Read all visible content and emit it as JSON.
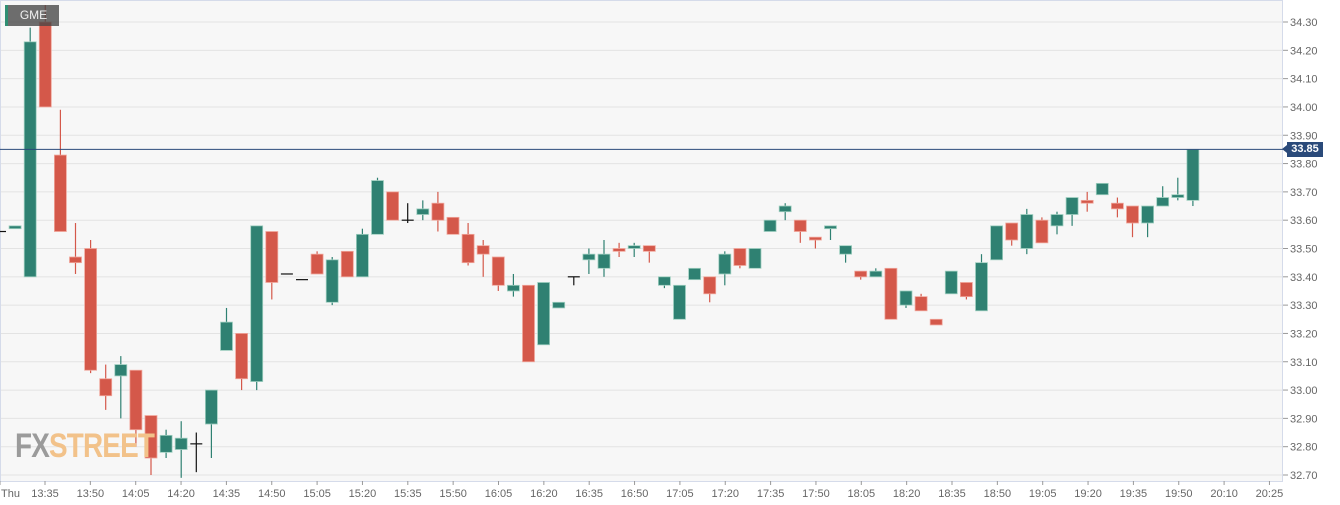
{
  "ticker": "GME",
  "logo": {
    "fx": "FX",
    "street": "STREET"
  },
  "current_price": {
    "value": 33.85,
    "label": "33.85"
  },
  "colors": {
    "up": "#2f8172",
    "down": "#d4584a",
    "doji": "#111111",
    "current_line": "#2a4a7a",
    "grid": "#e3e3e3",
    "background": "#f7f7f7"
  },
  "chart_data": {
    "type": "candlestick",
    "title": "GME",
    "xlabel": "",
    "ylabel": "",
    "ylim": [
      32.7,
      34.3
    ],
    "y_ticks": [
      "34.30",
      "34.20",
      "34.10",
      "34.00",
      "33.90",
      "33.80",
      "33.70",
      "33.60",
      "33.50",
      "33.40",
      "33.30",
      "33.20",
      "33.10",
      "33.00",
      "32.90",
      "32.80",
      "32.70"
    ],
    "x_ticks": [
      "Thu",
      "13:35",
      "13:50",
      "14:05",
      "14:20",
      "14:35",
      "14:50",
      "15:05",
      "15:20",
      "15:35",
      "15:50",
      "16:05",
      "16:20",
      "16:35",
      "16:50",
      "17:05",
      "17:20",
      "17:35",
      "17:50",
      "18:05",
      "18:20",
      "18:35",
      "18:50",
      "19:05",
      "19:20",
      "19:35",
      "19:50",
      "20:10",
      "20:25"
    ],
    "grid": true,
    "interval": "5m",
    "candles": [
      {
        "o": 33.56,
        "h": 33.56,
        "l": 33.56,
        "c": 33.56
      },
      {
        "o": 33.57,
        "h": 33.58,
        "l": 33.57,
        "c": 33.58
      },
      {
        "o": 33.4,
        "h": 34.28,
        "l": 33.4,
        "c": 34.23
      },
      {
        "o": 34.3,
        "h": 34.36,
        "l": 34.0,
        "c": 34.0
      },
      {
        "o": 33.83,
        "h": 33.99,
        "l": 33.56,
        "c": 33.56
      },
      {
        "o": 33.47,
        "h": 33.59,
        "l": 33.41,
        "c": 33.45
      },
      {
        "o": 33.5,
        "h": 33.53,
        "l": 33.06,
        "c": 33.07
      },
      {
        "o": 33.04,
        "h": 33.09,
        "l": 32.93,
        "c": 32.98
      },
      {
        "o": 33.05,
        "h": 33.12,
        "l": 32.9,
        "c": 33.09
      },
      {
        "o": 33.07,
        "h": 33.07,
        "l": 32.8,
        "c": 32.86
      },
      {
        "o": 32.91,
        "h": 32.91,
        "l": 32.7,
        "c": 32.76
      },
      {
        "o": 32.78,
        "h": 32.86,
        "l": 32.76,
        "c": 32.84
      },
      {
        "o": 32.79,
        "h": 32.89,
        "l": 32.69,
        "c": 32.83
      },
      {
        "o": 32.81,
        "h": 32.85,
        "l": 32.71,
        "c": 32.81
      },
      {
        "o": 32.88,
        "h": 33.0,
        "l": 32.76,
        "c": 33.0
      },
      {
        "o": 33.14,
        "h": 33.29,
        "l": 33.14,
        "c": 33.24
      },
      {
        "o": 33.2,
        "h": 33.2,
        "l": 33.0,
        "c": 33.04
      },
      {
        "o": 33.03,
        "h": 33.58,
        "l": 33.0,
        "c": 33.58
      },
      {
        "o": 33.56,
        "h": 33.56,
        "l": 33.32,
        "c": 33.38
      },
      {
        "o": 33.41,
        "h": 33.41,
        "l": 33.41,
        "c": 33.41
      },
      {
        "o": 33.39,
        "h": 33.39,
        "l": 33.39,
        "c": 33.39
      },
      {
        "o": 33.48,
        "h": 33.49,
        "l": 33.41,
        "c": 33.41
      },
      {
        "o": 33.31,
        "h": 33.47,
        "l": 33.3,
        "c": 33.46
      },
      {
        "o": 33.49,
        "h": 33.49,
        "l": 33.4,
        "c": 33.4
      },
      {
        "o": 33.4,
        "h": 33.57,
        "l": 33.4,
        "c": 33.55
      },
      {
        "o": 33.55,
        "h": 33.75,
        "l": 33.55,
        "c": 33.74
      },
      {
        "o": 33.7,
        "h": 33.7,
        "l": 33.6,
        "c": 33.6
      },
      {
        "o": 33.6,
        "h": 33.66,
        "l": 33.59,
        "c": 33.6
      },
      {
        "o": 33.62,
        "h": 33.67,
        "l": 33.6,
        "c": 33.64
      },
      {
        "o": 33.66,
        "h": 33.7,
        "l": 33.56,
        "c": 33.6
      },
      {
        "o": 33.61,
        "h": 33.61,
        "l": 33.55,
        "c": 33.55
      },
      {
        "o": 33.55,
        "h": 33.59,
        "l": 33.44,
        "c": 33.45
      },
      {
        "o": 33.51,
        "h": 33.53,
        "l": 33.4,
        "c": 33.48
      },
      {
        "o": 33.47,
        "h": 33.47,
        "l": 33.35,
        "c": 33.37
      },
      {
        "o": 33.35,
        "h": 33.41,
        "l": 33.33,
        "c": 33.37
      },
      {
        "o": 33.37,
        "h": 33.37,
        "l": 33.1,
        "c": 33.1
      },
      {
        "o": 33.16,
        "h": 33.38,
        "l": 33.16,
        "c": 33.38
      },
      {
        "o": 33.29,
        "h": 33.31,
        "l": 33.29,
        "c": 33.31
      },
      {
        "o": 33.4,
        "h": 33.4,
        "l": 33.37,
        "c": 33.4
      },
      {
        "o": 33.46,
        "h": 33.5,
        "l": 33.41,
        "c": 33.48
      },
      {
        "o": 33.43,
        "h": 33.53,
        "l": 33.4,
        "c": 33.48
      },
      {
        "o": 33.5,
        "h": 33.52,
        "l": 33.47,
        "c": 33.49
      },
      {
        "o": 33.5,
        "h": 33.52,
        "l": 33.47,
        "c": 33.51
      },
      {
        "o": 33.51,
        "h": 33.51,
        "l": 33.45,
        "c": 33.49
      },
      {
        "o": 33.37,
        "h": 33.4,
        "l": 33.36,
        "c": 33.4
      },
      {
        "o": 33.25,
        "h": 33.37,
        "l": 33.25,
        "c": 33.37
      },
      {
        "o": 33.39,
        "h": 33.43,
        "l": 33.39,
        "c": 33.43
      },
      {
        "o": 33.4,
        "h": 33.4,
        "l": 33.31,
        "c": 33.34
      },
      {
        "o": 33.41,
        "h": 33.49,
        "l": 33.37,
        "c": 33.48
      },
      {
        "o": 33.5,
        "h": 33.5,
        "l": 33.43,
        "c": 33.44
      },
      {
        "o": 33.43,
        "h": 33.5,
        "l": 33.43,
        "c": 33.5
      },
      {
        "o": 33.56,
        "h": 33.6,
        "l": 33.56,
        "c": 33.6
      },
      {
        "o": 33.63,
        "h": 33.66,
        "l": 33.6,
        "c": 33.65
      },
      {
        "o": 33.6,
        "h": 33.6,
        "l": 33.52,
        "c": 33.56
      },
      {
        "o": 33.54,
        "h": 33.54,
        "l": 33.5,
        "c": 33.53
      },
      {
        "o": 33.57,
        "h": 33.58,
        "l": 33.53,
        "c": 33.58
      },
      {
        "o": 33.48,
        "h": 33.51,
        "l": 33.45,
        "c": 33.51
      },
      {
        "o": 33.42,
        "h": 33.42,
        "l": 33.39,
        "c": 33.4
      },
      {
        "o": 33.4,
        "h": 33.43,
        "l": 33.4,
        "c": 33.42
      },
      {
        "o": 33.43,
        "h": 33.43,
        "l": 33.25,
        "c": 33.25
      },
      {
        "o": 33.3,
        "h": 33.35,
        "l": 33.29,
        "c": 33.35
      },
      {
        "o": 33.33,
        "h": 33.34,
        "l": 33.28,
        "c": 33.28
      },
      {
        "o": 33.25,
        "h": 33.25,
        "l": 33.23,
        "c": 33.23
      },
      {
        "o": 33.34,
        "h": 33.42,
        "l": 33.34,
        "c": 33.42
      },
      {
        "o": 33.38,
        "h": 33.38,
        "l": 33.32,
        "c": 33.33
      },
      {
        "o": 33.28,
        "h": 33.48,
        "l": 33.28,
        "c": 33.45
      },
      {
        "o": 33.46,
        "h": 33.58,
        "l": 33.46,
        "c": 33.58
      },
      {
        "o": 33.59,
        "h": 33.59,
        "l": 33.51,
        "c": 33.53
      },
      {
        "o": 33.5,
        "h": 33.64,
        "l": 33.48,
        "c": 33.62
      },
      {
        "o": 33.6,
        "h": 33.61,
        "l": 33.52,
        "c": 33.52
      },
      {
        "o": 33.58,
        "h": 33.63,
        "l": 33.55,
        "c": 33.62
      },
      {
        "o": 33.62,
        "h": 33.68,
        "l": 33.58,
        "c": 33.68
      },
      {
        "o": 33.67,
        "h": 33.7,
        "l": 33.63,
        "c": 33.66
      },
      {
        "o": 33.69,
        "h": 33.73,
        "l": 33.69,
        "c": 33.73
      },
      {
        "o": 33.66,
        "h": 33.68,
        "l": 33.61,
        "c": 33.64
      },
      {
        "o": 33.65,
        "h": 33.65,
        "l": 33.54,
        "c": 33.59
      },
      {
        "o": 33.59,
        "h": 33.65,
        "l": 33.54,
        "c": 33.65
      },
      {
        "o": 33.65,
        "h": 33.72,
        "l": 33.65,
        "c": 33.68
      },
      {
        "o": 33.68,
        "h": 33.75,
        "l": 33.67,
        "c": 33.69
      },
      {
        "o": 33.67,
        "h": 33.85,
        "l": 33.65,
        "c": 33.85
      }
    ]
  }
}
